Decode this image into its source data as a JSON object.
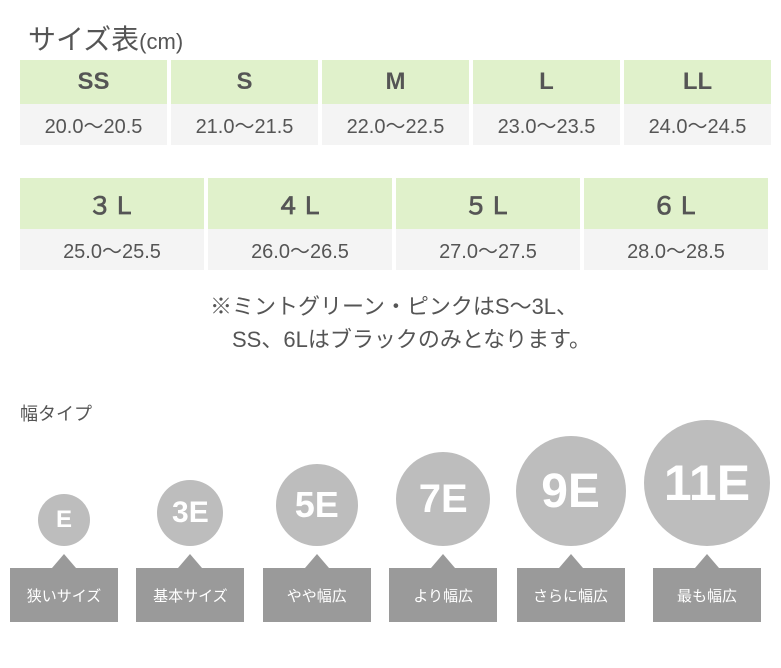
{
  "title": {
    "main": "サイズ表",
    "unit": "(cm)"
  },
  "sizes_row1": [
    {
      "label": "SS",
      "range": "20.0～20.5"
    },
    {
      "label": "S",
      "range": "21.0～21.5"
    },
    {
      "label": "M",
      "range": "22.0～22.5"
    },
    {
      "label": "L",
      "range": "23.0～23.5"
    },
    {
      "label": "LL",
      "range": "24.0～24.5"
    }
  ],
  "sizes_row2": [
    {
      "label": "３Ｌ",
      "range": "25.0～25.5"
    },
    {
      "label": "４Ｌ",
      "range": "26.0～26.5"
    },
    {
      "label": "５Ｌ",
      "range": "27.0～27.5"
    },
    {
      "label": "６Ｌ",
      "range": "28.0～28.5"
    }
  ],
  "note_line1": "※ミントグリーン・ピンクはS～3L、",
  "note_line2": "　SS、6Lはブラックのみとなります。",
  "width_title": "幅タイプ",
  "widths": [
    {
      "code": "E",
      "desc": "狭いサイズ",
      "diameter": 52,
      "fontsize": 24
    },
    {
      "code": "3E",
      "desc": "基本サイズ",
      "diameter": 66,
      "fontsize": 30
    },
    {
      "code": "5E",
      "desc": "やや幅広",
      "diameter": 82,
      "fontsize": 36
    },
    {
      "code": "7E",
      "desc": "より幅広",
      "diameter": 94,
      "fontsize": 40
    },
    {
      "code": "9E",
      "desc": "さらに幅広",
      "diameter": 110,
      "fontsize": 48
    },
    {
      "code": "11E",
      "desc": "最も幅広",
      "diameter": 126,
      "fontsize": 50
    }
  ],
  "colors": {
    "head_bg": "#e0f1cb",
    "val_bg": "#f4f4f4",
    "circle_bg": "#bdbdbd",
    "label_bg": "#9a9a9a",
    "text": "#555555"
  }
}
